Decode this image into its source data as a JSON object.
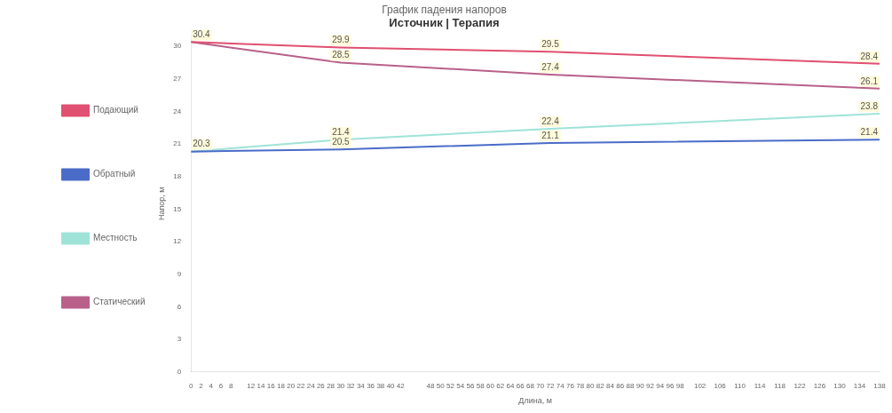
{
  "chart_data": {
    "type": "line",
    "title": "График падения напоров",
    "subtitle": "Источник | Терапия",
    "xlabel": "Длина, м",
    "ylabel": "Напор, м",
    "x": [
      0,
      30,
      72,
      138
    ],
    "series": [
      {
        "name": "Подающий",
        "color": "#e05070",
        "values": [
          30.4,
          29.9,
          29.5,
          28.4
        ],
        "value_labels": [
          "30.4",
          "29.9",
          "29.5",
          "28.4"
        ]
      },
      {
        "name": "Обратный",
        "color": "#4a6cc8",
        "values": [
          20.3,
          20.5,
          21.1,
          21.4
        ],
        "value_labels": [
          "20.3",
          "20.5",
          "21.1",
          "21.4"
        ]
      },
      {
        "name": "Местность",
        "color": "#9fe3d8",
        "values": [
          20.3,
          21.4,
          22.4,
          23.8
        ],
        "value_labels": [
          null,
          "21.4",
          "22.4",
          "23.8"
        ]
      },
      {
        "name": "Статический",
        "color": "#b8608a",
        "values": [
          30.4,
          28.5,
          27.4,
          26.1
        ],
        "value_labels": [
          null,
          "28.5",
          "27.4",
          "26.1"
        ]
      }
    ],
    "xlim": [
      0,
      138
    ],
    "xticks": [
      0,
      2,
      4,
      6,
      8,
      12,
      14,
      16,
      18,
      20,
      22,
      24,
      26,
      28,
      30,
      32,
      34,
      36,
      38,
      40,
      42,
      48,
      50,
      52,
      54,
      56,
      58,
      60,
      62,
      64,
      66,
      68,
      70,
      72,
      74,
      76,
      78,
      80,
      82,
      84,
      86,
      88,
      90,
      92,
      94,
      96,
      98,
      102,
      106,
      110,
      114,
      118,
      122,
      126,
      130,
      134,
      138
    ],
    "ylim": [
      0,
      31
    ],
    "yticks": [
      0,
      3,
      6,
      9,
      12,
      15,
      18,
      21,
      24,
      27,
      30
    ],
    "grid": false,
    "legend": "left",
    "marker": "none",
    "line_style": "solid"
  }
}
